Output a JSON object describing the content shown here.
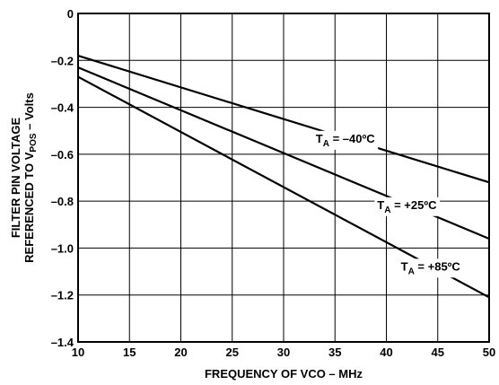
{
  "chart_data": {
    "type": "line",
    "title": "",
    "xlabel": "FREQUENCY OF VCO – MHz",
    "ylabel": {
      "line1": "FILTER PIN VOLTAGE",
      "line2_main": "REFERENCED TO V",
      "line2_sub": "POS",
      "line2_tail": " – Volts"
    },
    "xlim": [
      10,
      50
    ],
    "ylim": [
      -1.4,
      0
    ],
    "x_ticks": [
      "10",
      "15",
      "20",
      "25",
      "30",
      "35",
      "40",
      "45",
      "50"
    ],
    "y_ticks": [
      "0",
      "–0.2",
      "–0.4",
      "–0.6",
      "–0.8",
      "–1.0",
      "–1.2",
      "–1.4"
    ],
    "grid": true,
    "legend": "inline labels on lines",
    "series": [
      {
        "name": "T_A = –40ºC",
        "label_main": "T",
        "label_sub": "A",
        "label_tail": " = –40ºC",
        "x": [
          10,
          50
        ],
        "y": [
          -0.18,
          -0.72
        ]
      },
      {
        "name": "T_A = +25ºC",
        "label_main": "T",
        "label_sub": "A",
        "label_tail": " = +25ºC",
        "x": [
          10,
          50
        ],
        "y": [
          -0.23,
          -0.96
        ]
      },
      {
        "name": "T_A = +85ºC",
        "label_main": "T",
        "label_sub": "A",
        "label_tail": " = +85ºC",
        "x": [
          10,
          50
        ],
        "y": [
          -0.27,
          -1.21
        ]
      }
    ]
  }
}
